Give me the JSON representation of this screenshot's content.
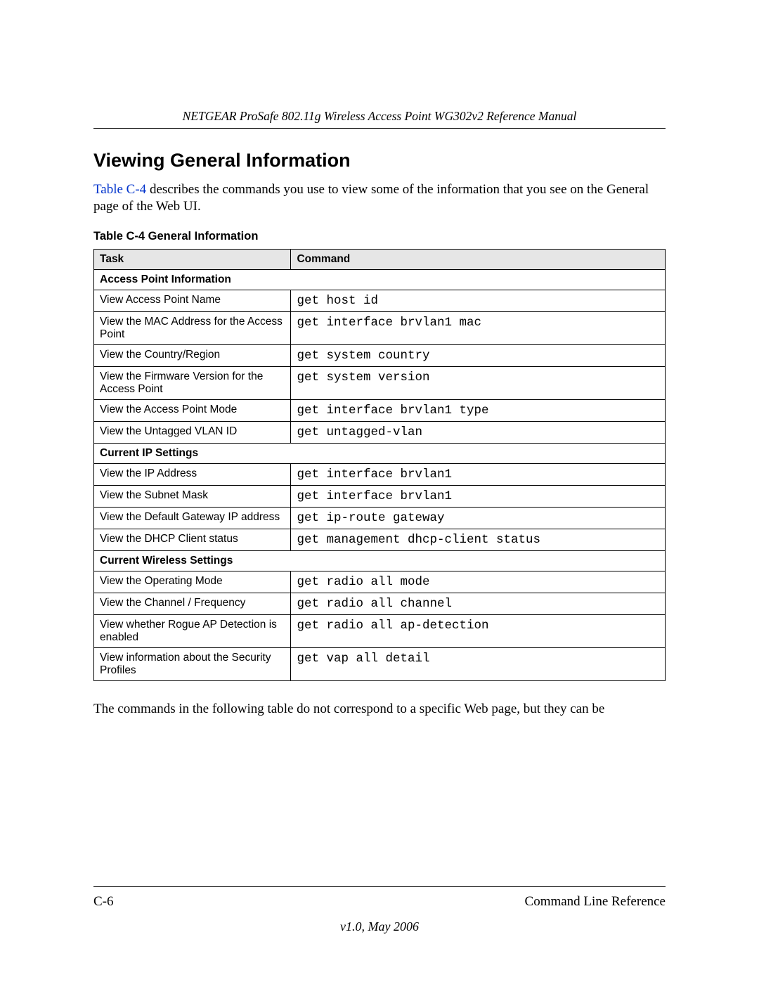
{
  "header": {
    "running_title": "NETGEAR ProSafe 802.11g Wireless Access Point WG302v2 Reference Manual"
  },
  "section": {
    "title": "Viewing General Information",
    "intro_link": "Table C-4",
    "intro_rest": " describes the commands you use to view some of the information that you see on the General page of the Web UI."
  },
  "table": {
    "caption": "Table C-4  General Information",
    "columns": [
      "Task",
      "Command"
    ],
    "sections": [
      {
        "header": "Access Point Information",
        "rows": [
          {
            "task": "View Access Point Name",
            "command": "get host id"
          },
          {
            "task": "View the MAC Address for the Access Point",
            "command": "get interface brvlan1 mac"
          },
          {
            "task": "View the Country/Region",
            "command": "get system country"
          },
          {
            "task": "View the Firmware Version for the Access Point",
            "command": "get system version"
          },
          {
            "task": "View the Access Point Mode",
            "command": "get interface brvlan1 type"
          },
          {
            "task": "View the Untagged VLAN ID",
            "command": "get untagged-vlan"
          }
        ]
      },
      {
        "header": "Current IP Settings",
        "rows": [
          {
            "task": "View the IP Address",
            "command": "get interface brvlan1"
          },
          {
            "task": "View the Subnet Mask",
            "command": "get interface brvlan1"
          },
          {
            "task": "View the Default Gateway IP address",
            "command": "get ip-route gateway"
          },
          {
            "task": "View the DHCP Client status",
            "command": "get management dhcp-client status"
          }
        ]
      },
      {
        "header": "Current Wireless Settings",
        "rows": [
          {
            "task": "View the Operating Mode",
            "command": "get radio all mode"
          },
          {
            "task": "View the Channel / Frequency",
            "command": "get radio all channel"
          },
          {
            "task": "View whether Rogue AP Detection is enabled",
            "command": "get radio all ap-detection"
          },
          {
            "task": "View information about the Security Profiles",
            "command": "get vap all detail"
          }
        ]
      }
    ]
  },
  "trailing_paragraph": "The commands in the following table do not correspond to a specific Web page, but they can be",
  "footer": {
    "page_number": "C-6",
    "doc_section": "Command Line Reference",
    "version": "v1.0, May 2006"
  }
}
